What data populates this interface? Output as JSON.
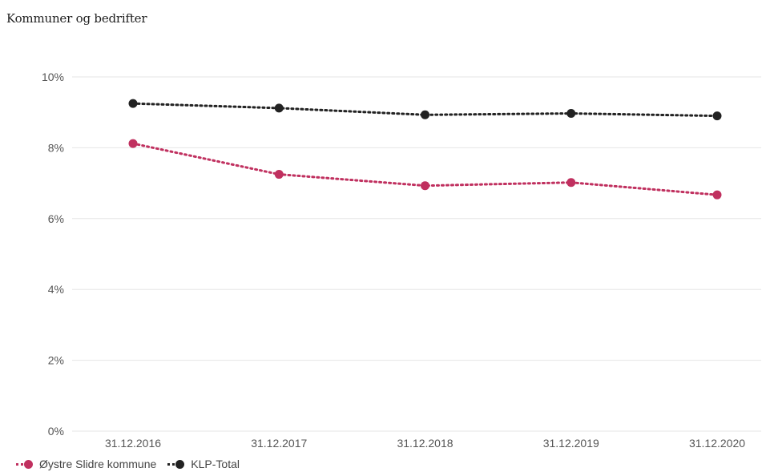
{
  "heading": "Kommuner og bedrifter",
  "chart_data": {
    "type": "line",
    "categories": [
      "31.12.2016",
      "31.12.2017",
      "31.12.2018",
      "31.12.2019",
      "31.12.2020"
    ],
    "series": [
      {
        "name": "KLP-Total",
        "values": [
          9.25,
          9.12,
          8.93,
          8.97,
          8.9
        ],
        "color": "#222222"
      },
      {
        "name": "Øystre Slidre kommune",
        "values": [
          8.12,
          7.25,
          6.93,
          7.02,
          6.67
        ],
        "color": "#c0305f"
      }
    ],
    "ylim": [
      0,
      10
    ],
    "yticks": [
      "0%",
      "2%",
      "4%",
      "6%",
      "8%",
      "10%"
    ],
    "ytick_values": [
      0,
      2,
      4,
      6,
      8,
      10
    ],
    "grid": true,
    "legend_position": "bottom-left",
    "line_style": "dotted"
  },
  "legend": [
    {
      "label": "Øystre Slidre kommune",
      "color": "#c0305f"
    },
    {
      "label": "KLP-Total",
      "color": "#222222"
    }
  ]
}
